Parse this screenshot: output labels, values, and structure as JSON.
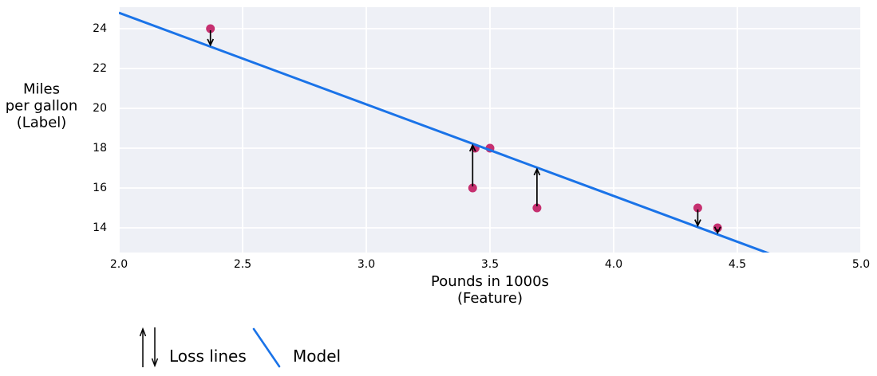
{
  "chart_data": {
    "type": "scatter",
    "title": "",
    "xlabel_lines": [
      "Pounds in 1000s",
      "(Feature)"
    ],
    "ylabel_lines": [
      "Miles",
      "per gallon",
      "(Label)"
    ],
    "xlim": [
      2.0,
      5.0
    ],
    "ylim": [
      12.76,
      25.08
    ],
    "xticks": [
      2.0,
      2.5,
      3.0,
      3.5,
      4.0,
      4.5,
      5.0
    ],
    "xtick_labels": [
      "2.0",
      "2.5",
      "3.0",
      "3.5",
      "4.0",
      "4.5",
      "5.0"
    ],
    "yticks": [
      14,
      16,
      18,
      20,
      22,
      24
    ],
    "ytick_labels": [
      "14",
      "16",
      "18",
      "20",
      "22",
      "24"
    ],
    "grid": true,
    "points": [
      {
        "x": 2.37,
        "y": 24
      },
      {
        "x": 3.43,
        "y": 16
      },
      {
        "x": 3.44,
        "y": 18
      },
      {
        "x": 3.5,
        "y": 18
      },
      {
        "x": 3.69,
        "y": 15
      },
      {
        "x": 4.34,
        "y": 15
      },
      {
        "x": 4.42,
        "y": 14
      }
    ],
    "model_line": {
      "slope": -4.6,
      "intercept": 34.0
    },
    "loss_lines": [
      {
        "x": 2.37,
        "from_y": 24,
        "direction": "down"
      },
      {
        "x": 3.43,
        "from_y": 16,
        "direction": "up"
      },
      {
        "x": 3.69,
        "from_y": 15,
        "direction": "up"
      },
      {
        "x": 4.34,
        "from_y": 15,
        "direction": "down"
      },
      {
        "x": 4.42,
        "from_y": 14,
        "direction": "down"
      }
    ],
    "colors": {
      "point": "#c63070",
      "model_line": "#1a73e8",
      "loss_arrow": "#000000",
      "plot_background": "#eef0f6",
      "gridline": "#ffffff",
      "text": "#000000"
    }
  },
  "legend": {
    "loss_label": "Loss lines",
    "model_label": "Model"
  }
}
